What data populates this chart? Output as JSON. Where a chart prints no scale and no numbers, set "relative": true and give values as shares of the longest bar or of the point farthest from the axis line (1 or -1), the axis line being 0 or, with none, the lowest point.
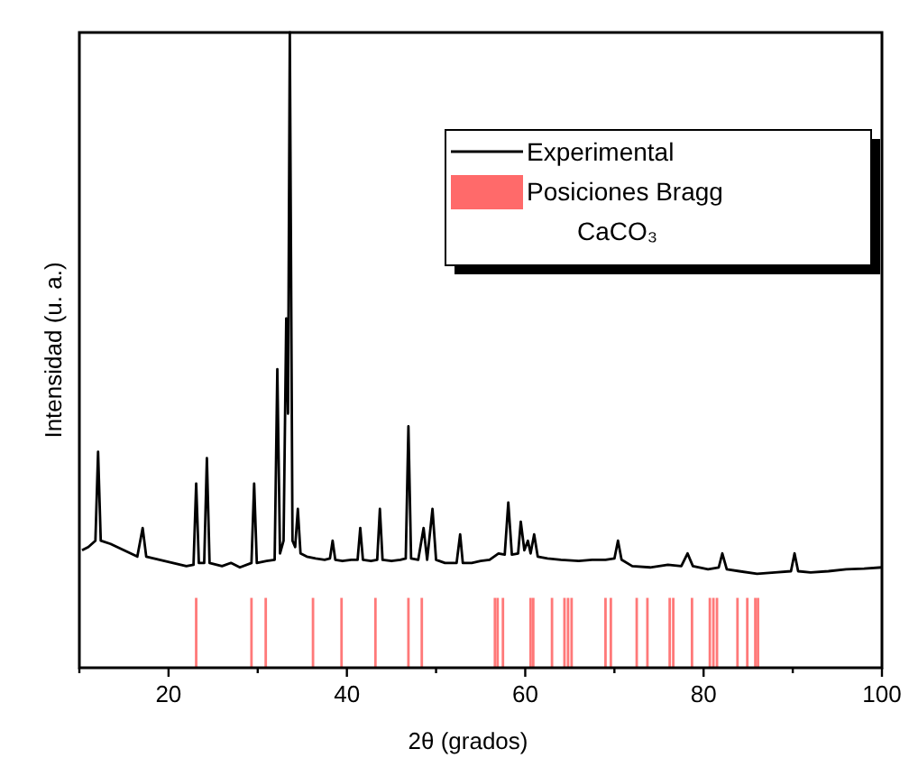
{
  "chart_data": {
    "type": "line",
    "relative": true,
    "xlabel": "2θ (grados)",
    "ylabel": "Intensidad (u. a.)",
    "xlim": [
      10,
      100
    ],
    "xticks": [
      {
        "value": 10,
        "label": null
      },
      20,
      {
        "value": 30,
        "label": null
      },
      40,
      {
        "value": 50,
        "label": null
      },
      60,
      {
        "value": 70,
        "label": null
      },
      80,
      {
        "value": 90,
        "label": null
      },
      100
    ],
    "legend": "top right",
    "grid": false,
    "series": [
      {
        "name": "Experimental",
        "color": "#000000",
        "x": [
          10.3,
          11.0,
          11.8,
          12.1,
          12.4,
          13.5,
          15,
          16.5,
          17.1,
          17.5,
          19,
          20.5,
          22,
          22.8,
          23.1,
          23.4,
          24.0,
          24.3,
          24.6,
          26,
          27,
          28,
          29.3,
          29.6,
          29.9,
          31,
          31.9,
          32.2,
          32.5,
          32.9,
          33.2,
          33.4,
          33.6,
          33.9,
          34.2,
          34.5,
          34.8,
          35.5,
          36.5,
          37.5,
          38.1,
          38.4,
          38.7,
          39.5,
          40.5,
          41.2,
          41.5,
          41.8,
          42.7,
          43.4,
          43.7,
          44.0,
          45,
          46.0,
          46.6,
          46.9,
          47.2,
          48.0,
          48.6,
          49.0,
          49.6,
          50.0,
          51,
          52.3,
          52.7,
          53.0,
          54,
          55,
          56,
          57.0,
          57.7,
          58.1,
          58.5,
          59.2,
          59.5,
          59.9,
          60.3,
          60.6,
          61.0,
          61.4,
          62.5,
          64,
          66,
          67.5,
          69,
          70.0,
          70.4,
          70.8,
          72,
          74,
          76,
          77.5,
          78.2,
          78.8,
          80.5,
          81.7,
          82.1,
          82.6,
          84,
          86,
          88,
          89.8,
          90.2,
          90.6,
          92,
          94,
          96,
          98,
          100
        ],
        "values": [
          0.185,
          0.19,
          0.2,
          0.34,
          0.2,
          0.195,
          0.185,
          0.175,
          0.22,
          0.175,
          0.17,
          0.165,
          0.16,
          0.162,
          0.29,
          0.165,
          0.165,
          0.33,
          0.165,
          0.16,
          0.165,
          0.158,
          0.165,
          0.29,
          0.165,
          0.168,
          0.17,
          0.47,
          0.18,
          0.2,
          0.55,
          0.4,
          1.0,
          0.2,
          0.19,
          0.25,
          0.18,
          0.175,
          0.172,
          0.17,
          0.172,
          0.2,
          0.17,
          0.168,
          0.17,
          0.17,
          0.22,
          0.17,
          0.168,
          0.17,
          0.25,
          0.17,
          0.168,
          0.17,
          0.172,
          0.38,
          0.172,
          0.17,
          0.22,
          0.17,
          0.25,
          0.17,
          0.165,
          0.165,
          0.21,
          0.165,
          0.165,
          0.168,
          0.17,
          0.18,
          0.178,
          0.26,
          0.178,
          0.18,
          0.23,
          0.185,
          0.2,
          0.18,
          0.21,
          0.175,
          0.172,
          0.17,
          0.168,
          0.17,
          0.17,
          0.172,
          0.2,
          0.17,
          0.16,
          0.158,
          0.162,
          0.16,
          0.18,
          0.16,
          0.155,
          0.158,
          0.18,
          0.155,
          0.152,
          0.148,
          0.15,
          0.152,
          0.18,
          0.152,
          0.15,
          0.152,
          0.155,
          0.156,
          0.158
        ]
      },
      {
        "name": "Posiciones Bragg CaCO₃",
        "type": "bar",
        "color": "#ff6a6a",
        "x": [
          23.1,
          29.3,
          30.9,
          36.2,
          39.4,
          43.2,
          46.9,
          48.4,
          56.6,
          56.9,
          57.5,
          60.6,
          60.9,
          63.0,
          64.4,
          64.8,
          65.2,
          69.0,
          69.6,
          72.5,
          73.7,
          76.2,
          76.6,
          78.7,
          80.7,
          81.1,
          81.5,
          83.8,
          84.9,
          85.8,
          86.1
        ],
        "values": [
          0.11,
          0.11,
          0.11,
          0.11,
          0.11,
          0.11,
          0.11,
          0.11,
          0.11,
          0.11,
          0.11,
          0.11,
          0.11,
          0.11,
          0.11,
          0.11,
          0.11,
          0.11,
          0.11,
          0.11,
          0.11,
          0.11,
          0.11,
          0.11,
          0.11,
          0.11,
          0.11,
          0.11,
          0.11,
          0.11,
          0.11
        ]
      }
    ]
  }
}
